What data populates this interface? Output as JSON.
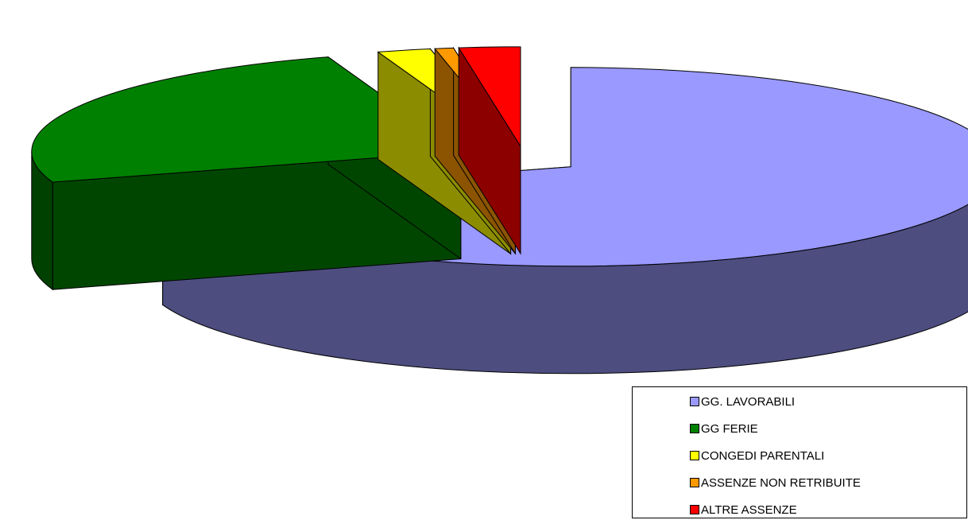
{
  "chart_data": {
    "type": "pie",
    "style": "3d-exploded",
    "categories": [
      "GG. LAVORABILI",
      "GG FERIE",
      "CONGEDI PARENTALI",
      "ASSENZE NON RETRIBUITE",
      "ALTRE ASSENZE"
    ],
    "values": [
      70,
      25,
      2,
      0.7,
      2.3
    ],
    "colors": [
      "#9999ff",
      "#008000",
      "#ffff00",
      "#ff9900",
      "#ff0000"
    ],
    "legend_position": "bottom-right"
  },
  "legend": {
    "items": [
      {
        "label": "GG. LAVORABILI",
        "color": "#9999ff"
      },
      {
        "label": "GG FERIE",
        "color": "#008000"
      },
      {
        "label": "CONGEDI PARENTALI",
        "color": "#ffff00"
      },
      {
        "label": "ASSENZE NON RETRIBUITE",
        "color": "#ff9900"
      },
      {
        "label": "ALTRE ASSENZE",
        "color": "#ff0000"
      }
    ]
  }
}
